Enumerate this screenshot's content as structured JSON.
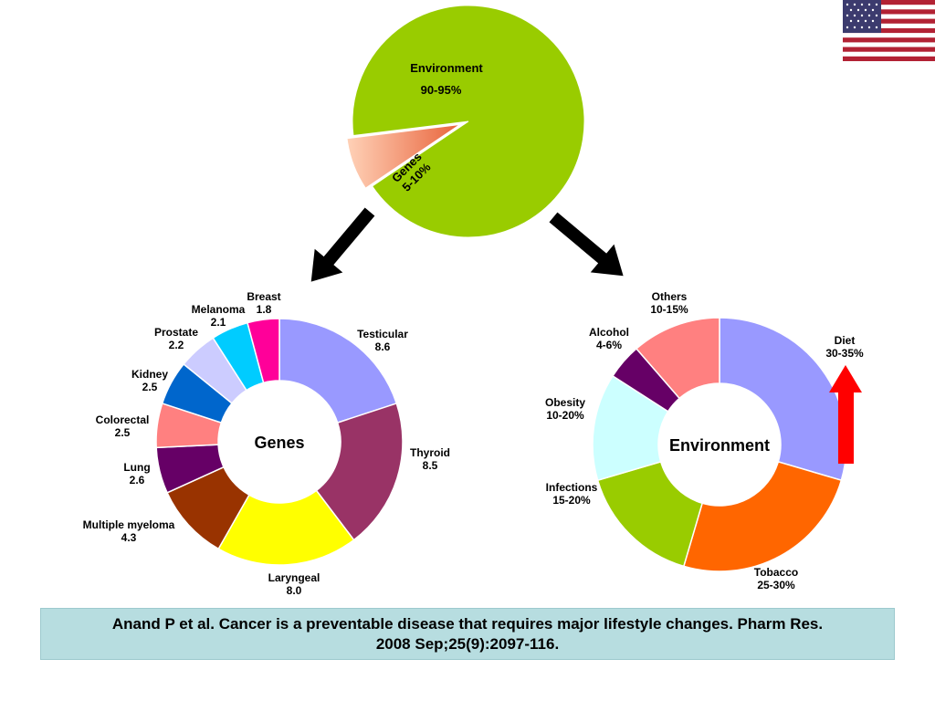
{
  "colors": {
    "env_green": "#99cc00",
    "genes_slice": "#e8623a",
    "arrow_black": "#000000",
    "arrow_red": "#ff0000",
    "citation_bg": "#b7dde0"
  },
  "flag_icon": "us-flag-icon",
  "chart_data": [
    {
      "type": "pie",
      "labels": [
        "Environment",
        "Genes"
      ],
      "value_labels": [
        "90-95%",
        "5-10%"
      ],
      "values": [
        92.5,
        7.5
      ],
      "colors": [
        "#99cc00",
        "#e8623a"
      ]
    },
    {
      "type": "pie",
      "variant": "donut",
      "center_label": "Genes",
      "labels": [
        "Testicular",
        "Thyroid",
        "Laryngeal",
        "Multiple myeloma",
        "Lung",
        "Colorectal",
        "Kidney",
        "Prostate",
        "Melanoma",
        "Breast"
      ],
      "value_labels": [
        "8.6",
        "8.5",
        "8.0",
        "4.3",
        "2.6",
        "2.5",
        "2.5",
        "2.2",
        "2.1",
        "1.8"
      ],
      "values": [
        8.6,
        8.5,
        8.0,
        4.3,
        2.6,
        2.5,
        2.5,
        2.2,
        2.1,
        1.8
      ],
      "colors": [
        "#9999ff",
        "#993366",
        "#ffff00",
        "#993300",
        "#660066",
        "#ff8080",
        "#0066cc",
        "#ccccff",
        "#00ccff",
        "#ff0099"
      ]
    },
    {
      "type": "pie",
      "variant": "donut",
      "center_label": "Environment",
      "labels": [
        "Diet",
        "Tobacco",
        "Infections",
        "Obesity",
        "Alcohol",
        "Others"
      ],
      "value_labels": [
        "30-35%",
        "25-30%",
        "15-20%",
        "10-20%",
        "4-6%",
        "10-15%"
      ],
      "values": [
        32.5,
        27.5,
        17.5,
        15,
        5,
        12.5
      ],
      "colors": [
        "#9999ff",
        "#ff6600",
        "#99cc00",
        "#ccffff",
        "#660066",
        "#ff8080"
      ]
    }
  ],
  "citation": {
    "line1": "Anand P et al. Cancer is a preventable disease that requires major lifestyle changes. Pharm Res.",
    "line2": "2008 Sep;25(9):2097-116."
  }
}
